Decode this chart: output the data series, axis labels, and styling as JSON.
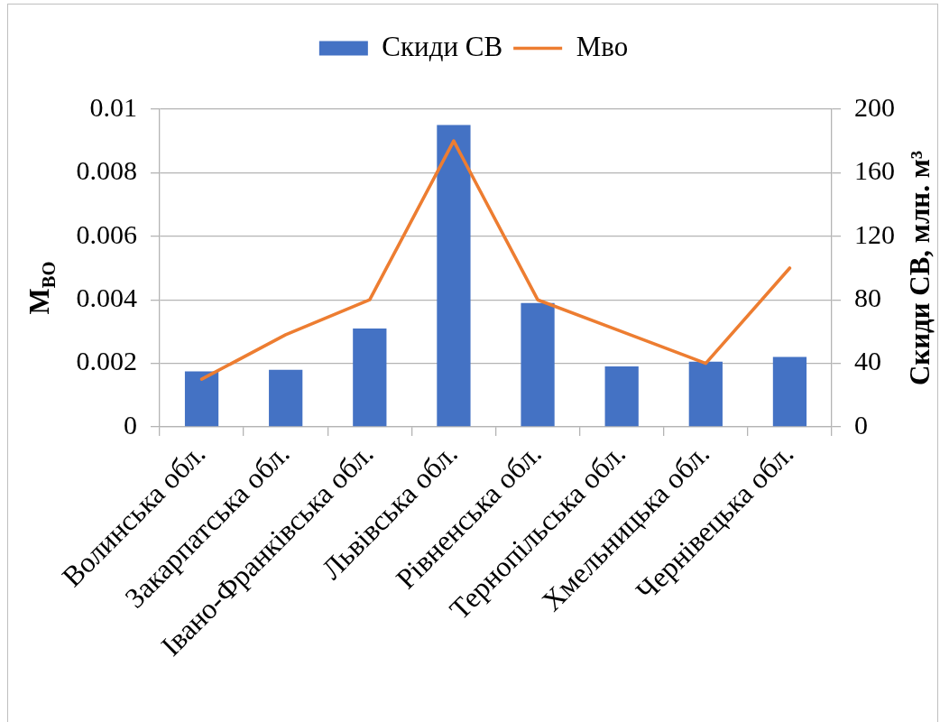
{
  "chart_data": {
    "type": "bar",
    "categories": [
      "Волинська обл.",
      "Закарпатська обл.",
      "Івано-Франківська обл.",
      "Львівська обл.",
      "Рівненська обл.",
      "Тернопільська обл.",
      "Хмельницька обл.",
      "Чернівецька обл."
    ],
    "series": [
      {
        "name": "Скиди СВ",
        "axis": "y2",
        "color": "#4472c4",
        "values": [
          35,
          36,
          62,
          190,
          78,
          38,
          41,
          44
        ]
      },
      {
        "name": "Мво",
        "type": "line",
        "color": "#ed7d31",
        "values": [
          0.0015,
          0.0029,
          0.004,
          0.009,
          0.004,
          0.003,
          0.002,
          0.005
        ]
      }
    ],
    "ylabel": "М$_{ВО}$",
    "y2label": "Скиди СВ, млн. м³",
    "ylim": [
      0,
      0.01
    ],
    "yticks": [
      0,
      0.002,
      0.004,
      0.006,
      0.008,
      0.01
    ],
    "y2lim": [
      0,
      200
    ],
    "y2ticks": [
      0,
      40,
      80,
      120,
      160,
      200
    ],
    "grid": "y",
    "legend": "top",
    "marker": "none"
  }
}
